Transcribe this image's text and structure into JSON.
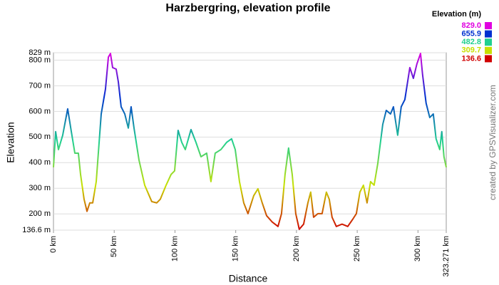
{
  "chart_data": {
    "type": "line",
    "title": "Harzbergring, elevation profile",
    "xlabel": "Distance",
    "ylabel": "Elevation",
    "credit": "created by GPSVisualizer.com",
    "xlim": [
      0,
      323.271
    ],
    "ylim": [
      136.6,
      829
    ],
    "xticks": [
      {
        "value": 0,
        "label": "0 km"
      },
      {
        "value": 50,
        "label": "50 km"
      },
      {
        "value": 100,
        "label": "100 km"
      },
      {
        "value": 150,
        "label": "150 km"
      },
      {
        "value": 200,
        "label": "200 km"
      },
      {
        "value": 250,
        "label": "250 km"
      },
      {
        "value": 300,
        "label": "300 km"
      },
      {
        "value": 323.271,
        "label": "323.271 km"
      }
    ],
    "yticks": [
      {
        "value": 136.6,
        "label": "136.6 m"
      },
      {
        "value": 200,
        "label": "200 m"
      },
      {
        "value": 300,
        "label": "300 m"
      },
      {
        "value": 400,
        "label": "400 m"
      },
      {
        "value": 500,
        "label": "500 m"
      },
      {
        "value": 600,
        "label": "600 m"
      },
      {
        "value": 700,
        "label": "700 m"
      },
      {
        "value": 800,
        "label": "800 m"
      },
      {
        "value": 829,
        "label": "829 m"
      }
    ],
    "grid": true,
    "legend": {
      "title": "Elevation (m)",
      "items": [
        {
          "value": 829,
          "label": "829.0",
          "color": "#e000e0"
        },
        {
          "value": 655.9,
          "label": "655.9",
          "color": "#0030d0"
        },
        {
          "value": 482.8,
          "label": "482.8",
          "color": "#20d090"
        },
        {
          "value": 309.7,
          "label": "309.7",
          "color": "#c8e000"
        },
        {
          "value": 136.6,
          "label": "136.6",
          "color": "#d00000"
        }
      ]
    },
    "x": [
      0,
      1.8,
      4.1,
      7.6,
      11.7,
      14.7,
      17.6,
      20.5,
      22.3,
      25.2,
      27.6,
      29.9,
      32.3,
      35.2,
      39.3,
      42.8,
      45.2,
      46.9,
      48.7,
      51.6,
      53.4,
      55.7,
      58.7,
      61.6,
      63.9,
      66.3,
      70.4,
      75.1,
      80.9,
      85.0,
      87.9,
      92.7,
      96.8,
      99.7,
      102.6,
      105.6,
      108.5,
      113.2,
      117.3,
      121.4,
      126.1,
      129.6,
      133.1,
      137.8,
      142.5,
      146.6,
      149.6,
      153.1,
      156.6,
      160.1,
      164.8,
      168.3,
      171.8,
      175.4,
      180.1,
      184.8,
      187.7,
      190.6,
      193.5,
      196.5,
      199.4,
      202.3,
      205.9,
      209.4,
      211.7,
      214.1,
      217.6,
      221.1,
      224.6,
      227.0,
      229.3,
      232.8,
      237.5,
      242.2,
      246.3,
      249.3,
      252.2,
      255.1,
      258.1,
      261.0,
      263.9,
      266.9,
      271.0,
      273.9,
      277.4,
      279.8,
      283.3,
      286.2,
      289.2,
      293.3,
      296.2,
      299.1,
      302.1,
      303.8,
      306.7,
      309.7,
      312.6,
      314.9,
      317.9,
      319.6,
      321.4,
      323.271
    ],
    "values": [
      382,
      521,
      451,
      507,
      610,
      521,
      437,
      437,
      354,
      257,
      210,
      243,
      243,
      326,
      590,
      687,
      812,
      826,
      771,
      765,
      715,
      618,
      590,
      535,
      618,
      535,
      410,
      312,
      248,
      243,
      257,
      312,
      354,
      368,
      526,
      479,
      451,
      529,
      479,
      423,
      437,
      326,
      437,
      451,
      479,
      493,
      451,
      326,
      243,
      201,
      271,
      298,
      243,
      193,
      168,
      151,
      201,
      354,
      457,
      354,
      201,
      140,
      160,
      243,
      285,
      187,
      201,
      201,
      285,
      257,
      187,
      151,
      160,
      151,
      179,
      201,
      285,
      312,
      243,
      326,
      312,
      396,
      549,
      604,
      590,
      618,
      507,
      618,
      646,
      771,
      729,
      785,
      826,
      743,
      632,
      576,
      590,
      493,
      451,
      521,
      423,
      382
    ]
  }
}
